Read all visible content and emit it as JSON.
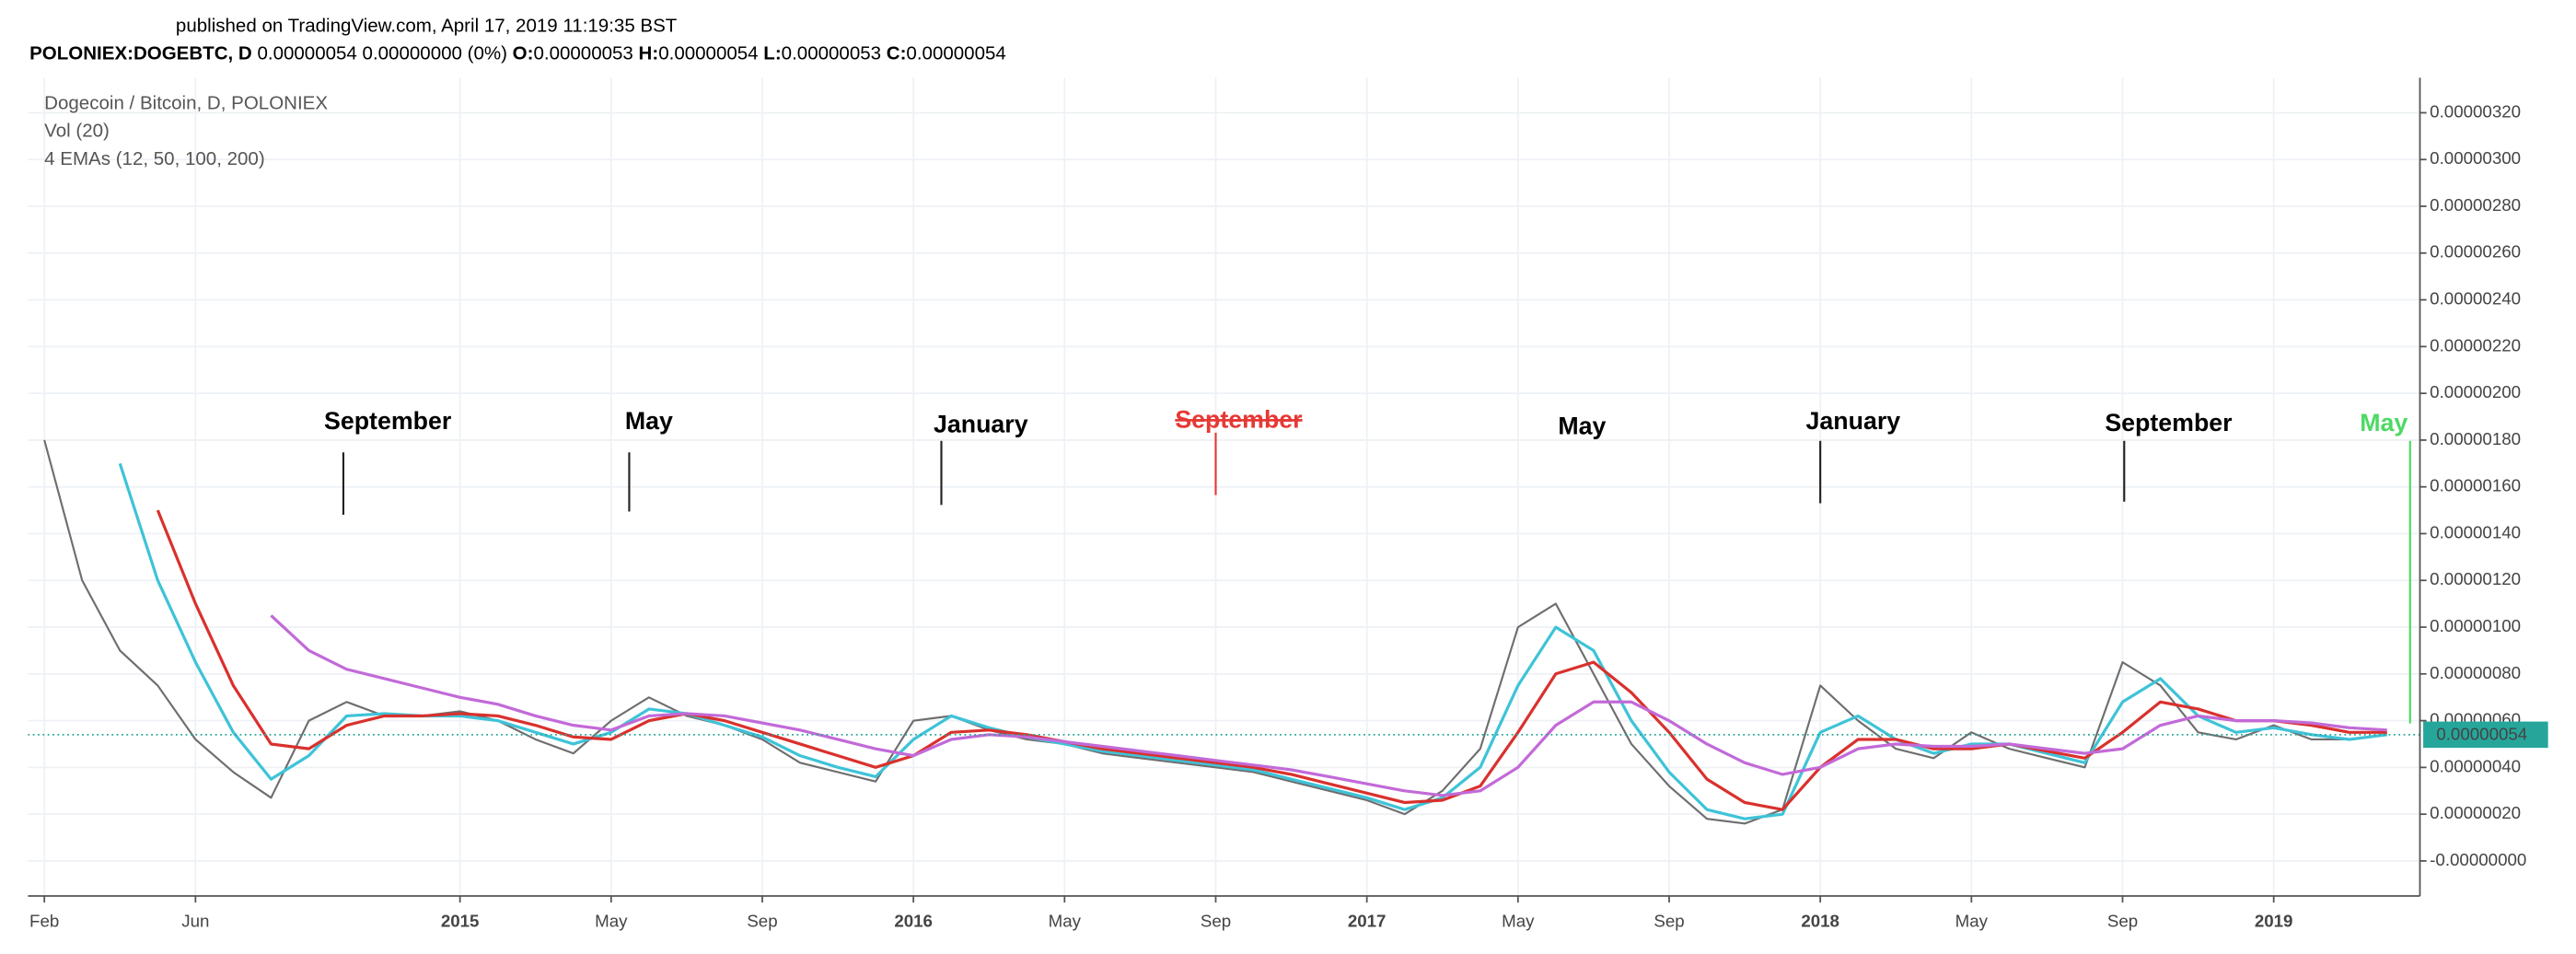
{
  "header": {
    "published": "published on TradingView.com, April 17, 2019 11:19:35 BST",
    "symbol": "POLONIEX:DOGEBTC, D",
    "change": "0.00000054 0.00000000 (0%)",
    "ohlc": [
      {
        "key": "O:",
        "value": "0.00000053"
      },
      {
        "key": "H:",
        "value": "0.00000054"
      },
      {
        "key": "L:",
        "value": "0.00000053"
      },
      {
        "key": "C:",
        "value": "0.00000054"
      }
    ]
  },
  "chart_data": {
    "type": "line",
    "legend_lines": [
      "Dogecoin / Bitcoin, D, POLONIEX",
      "Vol (20)",
      "4 EMAs (12, 50, 100, 200)"
    ],
    "x": [
      "2014-02",
      "2014-03",
      "2014-04",
      "2014-05",
      "2014-06",
      "2014-07",
      "2014-08",
      "2014-09",
      "2014-10",
      "2014-11",
      "2014-12",
      "2015-01",
      "2015-02",
      "2015-03",
      "2015-04",
      "2015-05",
      "2015-06",
      "2015-07",
      "2015-08",
      "2015-09",
      "2015-10",
      "2015-11",
      "2015-12",
      "2016-01",
      "2016-02",
      "2016-03",
      "2016-04",
      "2016-05",
      "2016-06",
      "2016-07",
      "2016-08",
      "2016-09",
      "2016-10",
      "2016-11",
      "2016-12",
      "2017-01",
      "2017-02",
      "2017-03",
      "2017-04",
      "2017-05",
      "2017-06",
      "2017-07",
      "2017-08",
      "2017-09",
      "2017-10",
      "2017-11",
      "2017-12",
      "2018-01",
      "2018-02",
      "2018-03",
      "2018-04",
      "2018-05",
      "2018-06",
      "2018-07",
      "2018-08",
      "2018-09",
      "2018-10",
      "2018-11",
      "2018-12",
      "2019-01",
      "2019-02",
      "2019-03",
      "2019-04"
    ],
    "series": [
      {
        "color": "#6e6e6e",
        "values": [
          1.8e-06,
          1.2e-06,
          9e-07,
          7.5e-07,
          5.2e-07,
          3.8e-07,
          2.7e-07,
          6e-07,
          6.8e-07,
          6.2e-07,
          6.2e-07,
          6.4e-07,
          6e-07,
          5.2e-07,
          4.6e-07,
          6e-07,
          7e-07,
          6.2e-07,
          5.8e-07,
          5.2e-07,
          4.2e-07,
          3.8e-07,
          3.4e-07,
          6e-07,
          6.2e-07,
          5.6e-07,
          5.2e-07,
          5e-07,
          4.6e-07,
          4.4e-07,
          4.2e-07,
          4e-07,
          3.8e-07,
          3.4e-07,
          3e-07,
          2.6e-07,
          2e-07,
          3e-07,
          4.8e-07,
          1e-06,
          1.1e-06,
          8e-07,
          5e-07,
          3.2e-07,
          1.8e-07,
          1.6e-07,
          2.2e-07,
          7.5e-07,
          6e-07,
          4.8e-07,
          4.4e-07,
          5.5e-07,
          4.8e-07,
          4.4e-07,
          4e-07,
          8.5e-07,
          7.5e-07,
          5.5e-07,
          5.2e-07,
          5.8e-07,
          5.2e-07,
          5.2e-07,
          5.4e-07
        ]
      },
      {
        "color": "#3ec3d8",
        "values": [
          null,
          null,
          1.7e-06,
          1.2e-06,
          8.5e-07,
          5.5e-07,
          3.5e-07,
          4.5e-07,
          6.2e-07,
          6.3e-07,
          6.2e-07,
          6.2e-07,
          6e-07,
          5.5e-07,
          5e-07,
          5.5e-07,
          6.5e-07,
          6.3e-07,
          5.8e-07,
          5.3e-07,
          4.5e-07,
          4e-07,
          3.6e-07,
          5.2e-07,
          6.2e-07,
          5.7e-07,
          5.3e-07,
          5e-07,
          4.7e-07,
          4.5e-07,
          4.3e-07,
          4.1e-07,
          3.9e-07,
          3.5e-07,
          3.1e-07,
          2.7e-07,
          2.2e-07,
          2.7e-07,
          4e-07,
          7.5e-07,
          1e-06,
          9e-07,
          6e-07,
          3.8e-07,
          2.2e-07,
          1.8e-07,
          2e-07,
          5.5e-07,
          6.2e-07,
          5.2e-07,
          4.6e-07,
          5e-07,
          5e-07,
          4.6e-07,
          4.2e-07,
          6.8e-07,
          7.8e-07,
          6.2e-07,
          5.5e-07,
          5.7e-07,
          5.4e-07,
          5.2e-07,
          5.4e-07
        ]
      },
      {
        "color": "#d9312d",
        "values": [
          null,
          null,
          null,
          1.5e-06,
          1.1e-06,
          7.5e-07,
          5e-07,
          4.8e-07,
          5.8e-07,
          6.2e-07,
          6.2e-07,
          6.3e-07,
          6.2e-07,
          5.8e-07,
          5.3e-07,
          5.2e-07,
          6e-07,
          6.3e-07,
          6e-07,
          5.5e-07,
          5e-07,
          4.5e-07,
          4e-07,
          4.5e-07,
          5.5e-07,
          5.6e-07,
          5.4e-07,
          5.1e-07,
          4.8e-07,
          4.6e-07,
          4.4e-07,
          4.2e-07,
          4e-07,
          3.7e-07,
          3.3e-07,
          2.9e-07,
          2.5e-07,
          2.6e-07,
          3.2e-07,
          5.5e-07,
          8e-07,
          8.5e-07,
          7.2e-07,
          5.5e-07,
          3.5e-07,
          2.5e-07,
          2.2e-07,
          4e-07,
          5.2e-07,
          5.2e-07,
          4.8e-07,
          4.8e-07,
          5e-07,
          4.7e-07,
          4.4e-07,
          5.5e-07,
          6.8e-07,
          6.5e-07,
          6e-07,
          6e-07,
          5.8e-07,
          5.5e-07,
          5.5e-07
        ]
      },
      {
        "color": "#c26ad8",
        "values": [
          null,
          null,
          null,
          null,
          null,
          null,
          1.05e-06,
          9e-07,
          8.2e-07,
          7.8e-07,
          7.4e-07,
          7e-07,
          6.7e-07,
          6.2e-07,
          5.8e-07,
          5.6e-07,
          6.2e-07,
          6.3e-07,
          6.2e-07,
          5.9e-07,
          5.6e-07,
          5.2e-07,
          4.8e-07,
          4.5e-07,
          5.2e-07,
          5.4e-07,
          5.3e-07,
          5.1e-07,
          4.9e-07,
          4.7e-07,
          4.5e-07,
          4.3e-07,
          4.1e-07,
          3.9e-07,
          3.6e-07,
          3.3e-07,
          3e-07,
          2.8e-07,
          3e-07,
          4e-07,
          5.8e-07,
          6.8e-07,
          6.8e-07,
          6e-07,
          5e-07,
          4.2e-07,
          3.7e-07,
          4e-07,
          4.8e-07,
          5e-07,
          4.9e-07,
          4.9e-07,
          5e-07,
          4.8e-07,
          4.6e-07,
          4.8e-07,
          5.8e-07,
          6.2e-07,
          6e-07,
          6e-07,
          5.9e-07,
          5.7e-07,
          5.6e-07
        ]
      }
    ],
    "xlim": [
      "2014-01",
      "2019-05"
    ],
    "xticks": [
      {
        "value": "2014-02",
        "label": "Feb"
      },
      {
        "value": "2014-06",
        "label": "Jun"
      },
      {
        "value": "2015-01",
        "label": "2015"
      },
      {
        "value": "2015-05",
        "label": "May"
      },
      {
        "value": "2015-09",
        "label": "Sep"
      },
      {
        "value": "2016-01",
        "label": "2016"
      },
      {
        "value": "2016-05",
        "label": "May"
      },
      {
        "value": "2016-09",
        "label": "Sep"
      },
      {
        "value": "2017-01",
        "label": "2017"
      },
      {
        "value": "2017-05",
        "label": "May"
      },
      {
        "value": "2017-09",
        "label": "Sep"
      },
      {
        "value": "2018-01",
        "label": "2018"
      },
      {
        "value": "2018-05",
        "label": "May"
      },
      {
        "value": "2018-09",
        "label": "Sep"
      },
      {
        "value": "2019-01",
        "label": "2019"
      }
    ],
    "ylim": [
      -1.5e-07,
      3.35e-06
    ],
    "yticks": [
      {
        "value": 0,
        "label": "-0.00000000"
      },
      {
        "value": 2e-07,
        "label": "0.00000020"
      },
      {
        "value": 4e-07,
        "label": "0.00000040"
      },
      {
        "value": 6e-07,
        "label": "0.00000060"
      },
      {
        "value": 8e-07,
        "label": "0.00000080"
      },
      {
        "value": 1e-06,
        "label": "0.00000100"
      },
      {
        "value": 1.2e-06,
        "label": "0.00000120"
      },
      {
        "value": 1.4e-06,
        "label": "0.00000140"
      },
      {
        "value": 1.6e-06,
        "label": "0.00000160"
      },
      {
        "value": 1.8e-06,
        "label": "0.00000180"
      },
      {
        "value": 2e-06,
        "label": "0.00000200"
      },
      {
        "value": 2.2e-06,
        "label": "0.00000220"
      },
      {
        "value": 2.4e-06,
        "label": "0.00000240"
      },
      {
        "value": 2.6e-06,
        "label": "0.00000260"
      },
      {
        "value": 2.8e-06,
        "label": "0.00000280"
      },
      {
        "value": 3e-06,
        "label": "0.00000300"
      },
      {
        "value": 3.2e-06,
        "label": "0.00000320"
      }
    ],
    "grid": true,
    "last_price": {
      "value": 5.4e-07,
      "label": "0.00000054",
      "color": "#26a69a"
    },
    "annotations": [
      {
        "text": "September",
        "color": "#000000",
        "strike": false
      },
      {
        "text": "May",
        "color": "#000000",
        "strike": false
      },
      {
        "text": "January",
        "color": "#000000",
        "strike": false
      },
      {
        "text": "September",
        "color": "#e53935",
        "strike": true
      },
      {
        "text": "May",
        "color": "#000000",
        "strike": false
      },
      {
        "text": "January",
        "color": "#000000",
        "strike": false
      },
      {
        "text": "September",
        "color": "#000000",
        "strike": false
      },
      {
        "text": "May",
        "color": "#4cd964",
        "strike": false
      }
    ]
  }
}
